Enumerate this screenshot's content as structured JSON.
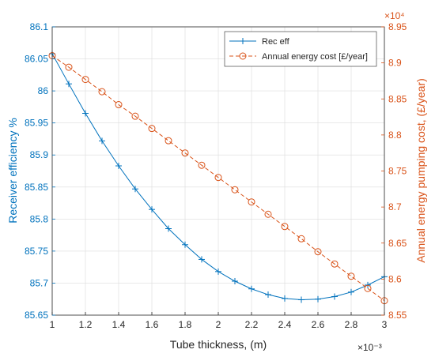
{
  "chart_data": {
    "type": "line",
    "xlabel": "Tube thickness, (m)",
    "x_exponent_label": "×10⁻³",
    "ylabel_left": "Receiver efficiency %",
    "ylabel_right": "Annual energy pumping cost, (£/year)",
    "y_right_exponent_label": "×10⁴",
    "xlim": [
      1,
      3
    ],
    "ylim_left": [
      85.65,
      86.1
    ],
    "ylim_right": [
      8.55,
      8.95
    ],
    "x_ticks": [
      "1",
      "1.2",
      "1.4",
      "1.6",
      "1.8",
      "2",
      "2.2",
      "2.4",
      "2.6",
      "2.8",
      "3"
    ],
    "y_left_ticks": [
      "85.65",
      "85.7",
      "85.75",
      "85.8",
      "85.85",
      "85.9",
      "85.95",
      "86",
      "86.05",
      "86.1"
    ],
    "y_right_ticks": [
      "8.55",
      "8.6",
      "8.65",
      "8.7",
      "8.75",
      "8.8",
      "8.85",
      "8.9",
      "8.95"
    ],
    "grid": true,
    "legend_position": "top-right",
    "x": [
      1.0,
      1.1,
      1.2,
      1.3,
      1.4,
      1.5,
      1.6,
      1.7,
      1.8,
      1.9,
      2.0,
      2.1,
      2.2,
      2.3,
      2.4,
      2.5,
      2.6,
      2.7,
      2.8,
      2.9,
      3.0
    ],
    "series": [
      {
        "name": "Rec eff",
        "axis": "left",
        "color": "#0072BD",
        "marker": "plus",
        "values": [
          86.058,
          86.011,
          85.965,
          85.922,
          85.883,
          85.847,
          85.815,
          85.785,
          85.76,
          85.737,
          85.718,
          85.703,
          85.691,
          85.682,
          85.676,
          85.674,
          85.675,
          85.679,
          85.686,
          85.697,
          85.71
        ]
      },
      {
        "name": "Annual energy cost [£/year]",
        "axis": "right",
        "color": "#D95319",
        "marker": "circle",
        "dashed": true,
        "values": [
          8.91,
          8.894,
          8.877,
          8.86,
          8.842,
          8.826,
          8.809,
          8.792,
          8.775,
          8.758,
          8.741,
          8.724,
          8.707,
          8.69,
          8.673,
          8.656,
          8.638,
          8.621,
          8.604,
          8.587,
          8.57
        ]
      }
    ]
  }
}
